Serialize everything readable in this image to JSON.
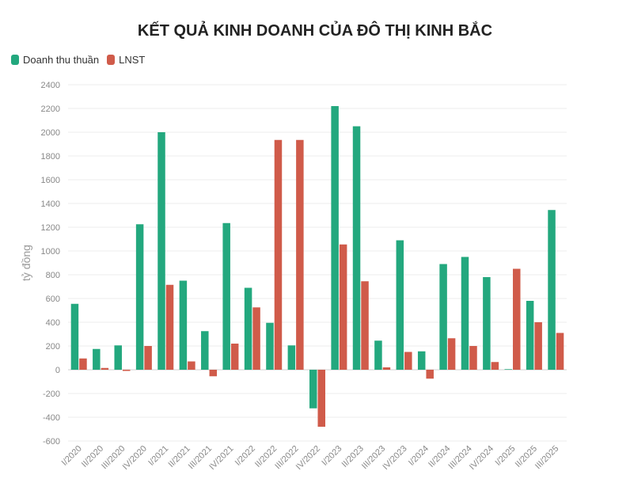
{
  "chart_data": {
    "type": "bar",
    "title": "KẾT QUẢ KINH DOANH CỦA ĐÔ THỊ KINH BẮC",
    "ylabel": "tỷ đồng",
    "xlabel": "",
    "ylim": [
      -600,
      2400
    ],
    "yticks": [
      -600,
      -400,
      -200,
      0,
      200,
      400,
      600,
      800,
      1000,
      1200,
      1400,
      1600,
      1800,
      2000,
      2200,
      2400
    ],
    "legend_position": "top-left",
    "grid": true,
    "categories": [
      "I/2020",
      "II/2020",
      "III/2020",
      "IV/2020",
      "I/2021",
      "II/2021",
      "III/2021",
      "IV/2021",
      "I/2022",
      "II/2022",
      "III/2022",
      "IV/2022",
      "I/2023",
      "II/2023",
      "III/2023",
      "IV/2023",
      "I/2024",
      "II/2024",
      "III/2024",
      "IV/2024",
      "I/2025",
      "II/2025",
      "III/2025"
    ],
    "series": [
      {
        "name": "Doanh thu thuần",
        "color": "#23a87e",
        "values": [
          555,
          175,
          205,
          1225,
          2000,
          750,
          325,
          1235,
          690,
          395,
          205,
          -325,
          2220,
          2050,
          245,
          1090,
          155,
          890,
          950,
          780,
          5,
          580,
          1345
        ]
      },
      {
        "name": "LNST",
        "color": "#d05b4a",
        "values": [
          95,
          15,
          -10,
          200,
          715,
          70,
          -55,
          220,
          525,
          1935,
          1935,
          -480,
          1055,
          745,
          20,
          150,
          -75,
          265,
          200,
          65,
          850,
          400,
          310
        ]
      }
    ]
  }
}
